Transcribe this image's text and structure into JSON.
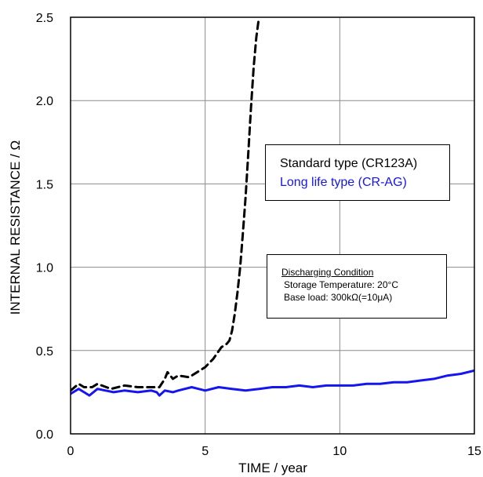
{
  "chart_data": {
    "type": "line",
    "xlabel": "TIME / year",
    "ylabel": "INTERNAL RESISTANCE / Ω",
    "xlim": [
      0,
      15
    ],
    "ylim": [
      0,
      2.5
    ],
    "xticks": [
      "0",
      "5",
      "10",
      "15"
    ],
    "yticks": [
      "0.0",
      "0.5",
      "1.0",
      "1.5",
      "2.0",
      "2.5"
    ],
    "grid": true,
    "legend_position": "upper-right",
    "series": [
      {
        "name": "Standard type (CR123A)",
        "color": "#000000",
        "style": "dashed",
        "x": [
          0,
          0.3,
          0.5,
          0.8,
          1.0,
          1.5,
          2.0,
          2.5,
          3.0,
          3.3,
          3.5,
          3.6,
          3.8,
          4.0,
          4.4,
          4.8,
          5.0,
          5.3,
          5.6,
          5.8,
          5.9,
          6.0,
          6.1,
          6.2,
          6.3,
          6.4,
          6.5,
          6.6,
          6.7,
          6.8,
          6.9,
          7.0
        ],
        "y": [
          0.26,
          0.3,
          0.28,
          0.28,
          0.3,
          0.27,
          0.29,
          0.28,
          0.28,
          0.28,
          0.33,
          0.37,
          0.33,
          0.35,
          0.34,
          0.38,
          0.4,
          0.45,
          0.52,
          0.54,
          0.56,
          0.62,
          0.72,
          0.85,
          1.0,
          1.2,
          1.42,
          1.68,
          1.95,
          2.2,
          2.38,
          2.5
        ]
      },
      {
        "name": "Long life type (CR-AG)",
        "color": "#1515ee",
        "style": "solid",
        "x": [
          0,
          0.3,
          0.5,
          0.7,
          1.0,
          1.3,
          1.6,
          2.0,
          2.5,
          3.0,
          3.2,
          3.3,
          3.5,
          3.8,
          4.0,
          4.5,
          5.0,
          5.5,
          6.0,
          6.5,
          7.0,
          7.5,
          8.0,
          8.5,
          9.0,
          9.5,
          10.0,
          10.5,
          11.0,
          11.5,
          12.0,
          12.5,
          13.0,
          13.5,
          14.0,
          14.5,
          15.0
        ],
        "y": [
          0.24,
          0.27,
          0.25,
          0.23,
          0.27,
          0.26,
          0.25,
          0.26,
          0.25,
          0.26,
          0.25,
          0.23,
          0.26,
          0.25,
          0.26,
          0.28,
          0.26,
          0.28,
          0.27,
          0.26,
          0.27,
          0.28,
          0.28,
          0.29,
          0.28,
          0.29,
          0.29,
          0.29,
          0.3,
          0.3,
          0.31,
          0.31,
          0.32,
          0.33,
          0.35,
          0.36,
          0.38
        ]
      }
    ]
  },
  "legend": {
    "standard": "Standard type (CR123A)",
    "longlife": "Long life type (CR-AG)"
  },
  "condition": {
    "title": "Discharging Condition",
    "line1": "Storage Temperature: 20°C",
    "line2": "Base load: 300kΩ(=10μA)"
  }
}
